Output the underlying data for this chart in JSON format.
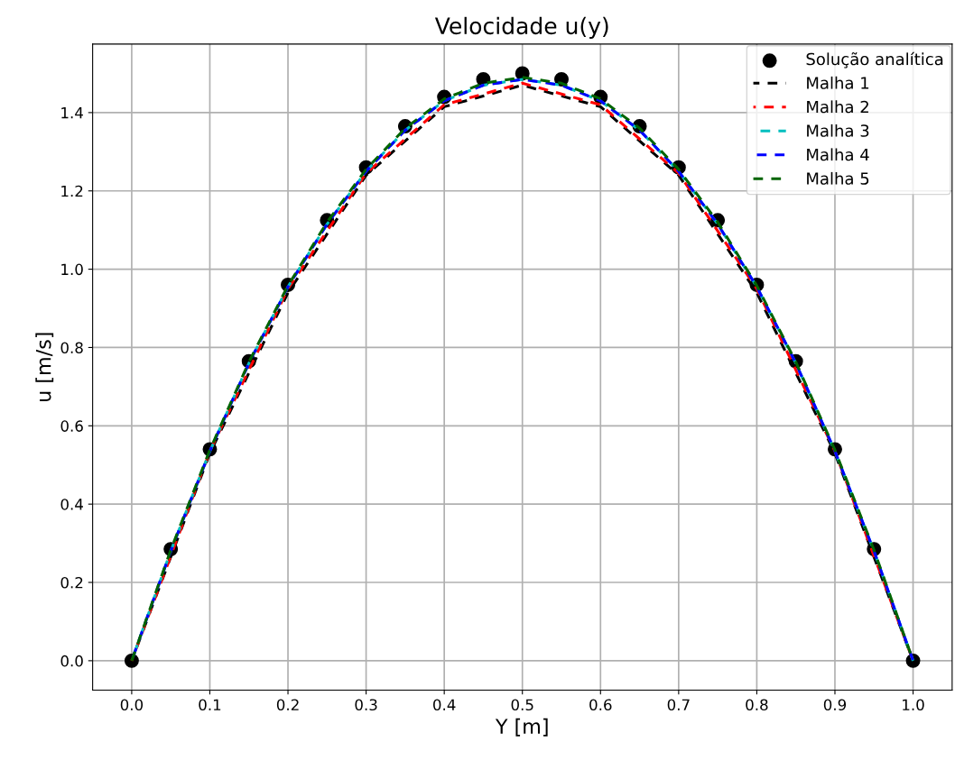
{
  "chart_data": {
    "type": "line",
    "title": "Velocidade u(y)",
    "xlabel": "Y [m]",
    "ylabel": "u [m/s]",
    "xlim": [
      -0.05,
      1.05
    ],
    "ylim": [
      -0.075,
      1.575
    ],
    "xticks": [
      {
        "value": 0,
        "label": "0.0"
      },
      0.1,
      0.2,
      0.3,
      0.4,
      0.5,
      0.6,
      0.7,
      0.8,
      0.9,
      {
        "value": 1,
        "label": "1.0"
      }
    ],
    "yticks": [
      {
        "value": 0,
        "label": "0.0"
      },
      0.2,
      0.4,
      0.6,
      0.8,
      {
        "value": 1,
        "label": "1.0"
      },
      1.2,
      1.4
    ],
    "grid": true,
    "legend": "top right",
    "line_style": "dashed",
    "series": [
      {
        "name": "Solução analítica",
        "type": "scatter",
        "marker": "circle",
        "color": "#000000",
        "x": [
          0.0,
          0.05,
          0.1,
          0.15,
          0.2,
          0.25,
          0.3,
          0.35,
          0.4,
          0.45,
          0.5,
          0.55,
          0.6,
          0.65,
          0.7,
          0.75,
          0.8,
          0.85,
          0.9,
          0.95,
          1.0
        ],
        "values": [
          0.0,
          0.285,
          0.54,
          0.765,
          0.96,
          1.125,
          1.26,
          1.365,
          1.44,
          1.485,
          1.5,
          1.485,
          1.44,
          1.365,
          1.26,
          1.125,
          0.96,
          0.765,
          0.54,
          0.285,
          0.0
        ]
      },
      {
        "name": "Malha 1",
        "color": "#000000",
        "x": [
          0.0,
          0.1,
          0.2,
          0.3,
          0.4,
          0.5,
          0.6,
          0.7,
          0.8,
          0.9,
          1.0
        ],
        "values": [
          0.0,
          0.53,
          0.94,
          1.24,
          1.415,
          1.47,
          1.415,
          1.24,
          0.94,
          0.53,
          0.0
        ]
      },
      {
        "name": "Malha 2",
        "color": "#ff0000",
        "x": [
          0.0,
          0.1,
          0.2,
          0.3,
          0.4,
          0.5,
          0.6,
          0.7,
          0.8,
          0.9,
          1.0
        ],
        "values": [
          0.0,
          0.535,
          0.95,
          1.245,
          1.42,
          1.475,
          1.42,
          1.245,
          0.95,
          0.535,
          0.0
        ]
      },
      {
        "name": "Malha 3",
        "color": "#00bfbf",
        "x": [
          0.0,
          0.05,
          0.1,
          0.15,
          0.2,
          0.25,
          0.3,
          0.35,
          0.4,
          0.45,
          0.5,
          0.55,
          0.6,
          0.65,
          0.7,
          0.75,
          0.8,
          0.85,
          0.9,
          0.95,
          1.0
        ],
        "values": [
          0.0,
          0.28,
          0.535,
          0.76,
          0.955,
          1.115,
          1.25,
          1.355,
          1.43,
          1.47,
          1.485,
          1.47,
          1.43,
          1.355,
          1.25,
          1.115,
          0.955,
          0.76,
          0.535,
          0.28,
          0.0
        ]
      },
      {
        "name": "Malha 4",
        "color": "#0000ff",
        "x": [
          0.0,
          0.05,
          0.1,
          0.15,
          0.2,
          0.25,
          0.3,
          0.35,
          0.4,
          0.45,
          0.5,
          0.55,
          0.6,
          0.65,
          0.7,
          0.75,
          0.8,
          0.85,
          0.9,
          0.95,
          1.0
        ],
        "values": [
          0.0,
          0.28,
          0.535,
          0.76,
          0.955,
          1.115,
          1.25,
          1.355,
          1.43,
          1.47,
          1.485,
          1.47,
          1.43,
          1.355,
          1.25,
          1.115,
          0.955,
          0.76,
          0.535,
          0.28,
          0.0
        ]
      },
      {
        "name": "Malha 5",
        "color": "#006400",
        "x": [
          0.0,
          0.05,
          0.1,
          0.15,
          0.2,
          0.25,
          0.3,
          0.35,
          0.4,
          0.45,
          0.5,
          0.55,
          0.6,
          0.65,
          0.7,
          0.75,
          0.8,
          0.85,
          0.9,
          0.95,
          1.0
        ],
        "values": [
          0.0,
          0.283,
          0.538,
          0.763,
          0.958,
          1.12,
          1.255,
          1.36,
          1.435,
          1.475,
          1.49,
          1.475,
          1.435,
          1.36,
          1.255,
          1.12,
          0.958,
          0.763,
          0.538,
          0.283,
          0.0
        ]
      }
    ]
  }
}
